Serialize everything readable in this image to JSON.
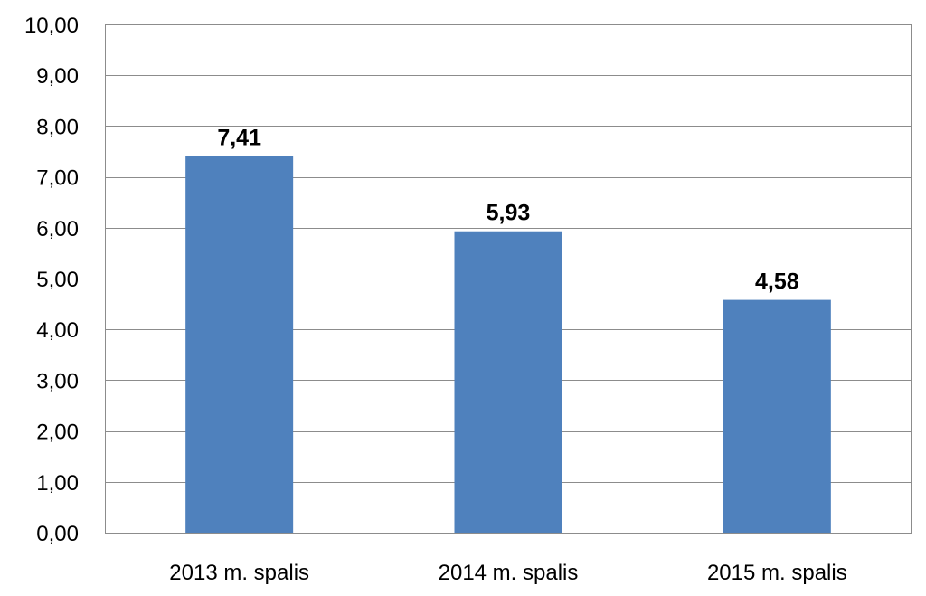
{
  "chart_data": {
    "type": "bar",
    "title": "",
    "xlabel": "",
    "ylabel": "",
    "categories": [
      "2013 m. spalis",
      "2014 m. spalis",
      "2015 m. spalis"
    ],
    "values": [
      7.41,
      5.93,
      4.58
    ],
    "value_labels": [
      "7,41",
      "5,93",
      "4,58"
    ],
    "ylim": [
      0,
      10
    ],
    "y_ticks": [
      0,
      1,
      2,
      3,
      4,
      5,
      6,
      7,
      8,
      9,
      10
    ],
    "y_tick_labels": [
      "0,00",
      "1,00",
      "2,00",
      "3,00",
      "4,00",
      "5,00",
      "6,00",
      "7,00",
      "8,00",
      "9,00",
      "10,00"
    ],
    "grid": true,
    "legend": "none",
    "bar_color": "#4f81bd"
  }
}
